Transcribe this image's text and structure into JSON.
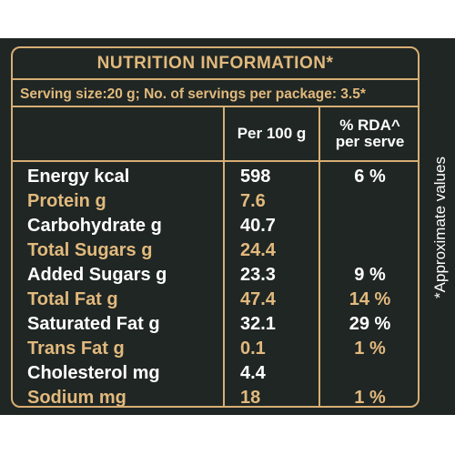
{
  "label": {
    "title": "NUTRITION INFORMATION*",
    "serving_info": "Serving size:20 g; No. of servings per package: 3.5*",
    "columns": {
      "per100g": "Per 100 g",
      "rda_line1": "% RDA^",
      "rda_line2": "per serve"
    },
    "rows": [
      {
        "name": "Energy kcal",
        "per100g": "598",
        "rda": "6 %",
        "highlight": false
      },
      {
        "name": "Protein g",
        "per100g": "7.6",
        "rda": "",
        "highlight": true
      },
      {
        "name": "Carbohydrate g",
        "per100g": "40.7",
        "rda": "",
        "highlight": false
      },
      {
        "name": "Total Sugars g",
        "per100g": "24.4",
        "rda": "",
        "highlight": true
      },
      {
        "name": "Added Sugars g",
        "per100g": "23.3",
        "rda": "9 %",
        "highlight": false
      },
      {
        "name": "Total Fat g",
        "per100g": "47.4",
        "rda": "14 %",
        "highlight": true
      },
      {
        "name": "Saturated Fat g",
        "per100g": "32.1",
        "rda": "29 %",
        "highlight": false
      },
      {
        "name": "Trans Fat g",
        "per100g": "0.1",
        "rda": "1 %",
        "highlight": true
      },
      {
        "name": "Cholesterol mg",
        "per100g": "4.4",
        "rda": "",
        "highlight": false
      },
      {
        "name": "Sodium mg",
        "per100g": "18",
        "rda": "1 %",
        "highlight": true
      }
    ],
    "side_note": "*Approximate values"
  },
  "colors": {
    "background": "#1f2624",
    "gold": "#e2b97d",
    "text": "#ffffff"
  }
}
